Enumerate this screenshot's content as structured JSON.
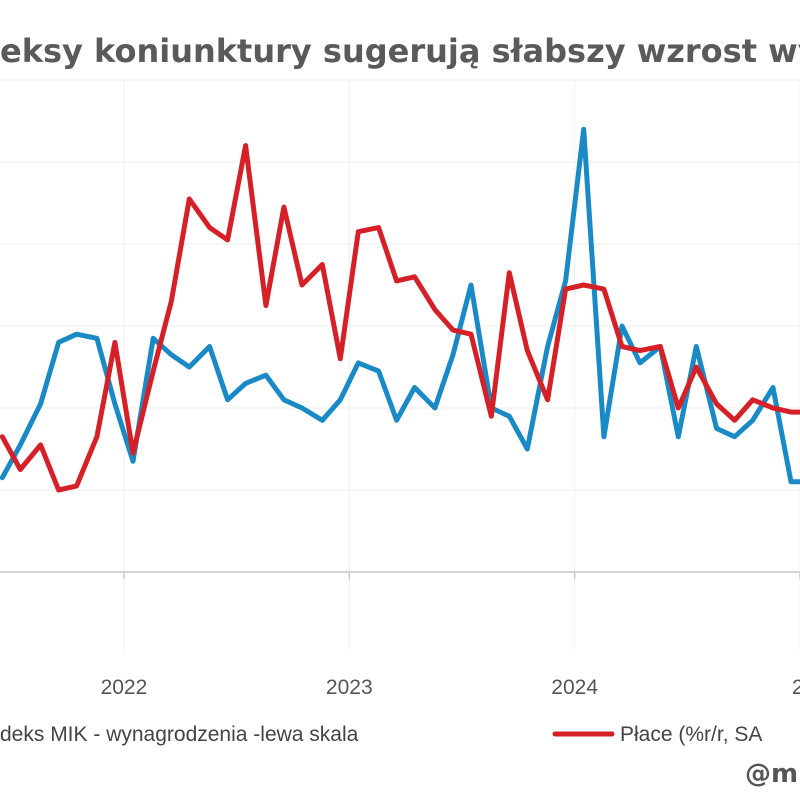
{
  "chart_data": {
    "type": "line",
    "title": "eksy koniunktury sugerują słabszy wzrost wynag",
    "x_ticks": [
      "2022",
      "2023",
      "2024",
      "2"
    ],
    "xlim": [
      2021.45,
      2025.0
    ],
    "ylim_left": [
      0,
      100
    ],
    "grid": true,
    "legend_placement": "bottom",
    "series": [
      {
        "name": "deks MIK - wynagrodzenia -lewa skala",
        "axis": "left",
        "color": "#1a8ac6",
        "x": [
          2021.46,
          2021.54,
          2021.63,
          2021.71,
          2021.79,
          2021.88,
          2021.96,
          2022.04,
          2022.13,
          2022.21,
          2022.29,
          2022.38,
          2022.46,
          2022.54,
          2022.63,
          2022.71,
          2022.79,
          2022.88,
          2022.96,
          2023.04,
          2023.13,
          2023.21,
          2023.29,
          2023.38,
          2023.46,
          2023.54,
          2023.63,
          2023.71,
          2023.79,
          2023.88,
          2023.96,
          2024.04,
          2024.13,
          2024.21,
          2024.29,
          2024.38,
          2024.46,
          2024.54,
          2024.63,
          2024.71,
          2024.79,
          2024.88,
          2024.96,
          2025.0
        ],
        "y": [
          23,
          31,
          41,
          56,
          58,
          57,
          41,
          27,
          57,
          53,
          50,
          55,
          42,
          46,
          48,
          42,
          40,
          37,
          42,
          51,
          49,
          37,
          45,
          40,
          53,
          70,
          40,
          38,
          30,
          55,
          71,
          108,
          33,
          60,
          51,
          55,
          33,
          55,
          35,
          33,
          37,
          45,
          22,
          22
        ]
      },
      {
        "name": "Płace (%r/r, SA",
        "axis": "right",
        "color": "#d62027",
        "x": [
          2021.46,
          2021.54,
          2021.63,
          2021.71,
          2021.79,
          2021.88,
          2021.96,
          2022.04,
          2022.13,
          2022.21,
          2022.29,
          2022.38,
          2022.46,
          2022.54,
          2022.63,
          2022.71,
          2022.79,
          2022.88,
          2022.96,
          2023.04,
          2023.13,
          2023.21,
          2023.29,
          2023.38,
          2023.46,
          2023.54,
          2023.63,
          2023.71,
          2023.79,
          2023.88,
          2023.96,
          2024.04,
          2024.13,
          2024.21,
          2024.29,
          2024.38,
          2024.46,
          2024.54,
          2024.63,
          2024.71,
          2024.79,
          2024.88,
          2024.96,
          2025.0
        ],
        "y": [
          33,
          25,
          31,
          20,
          21,
          33,
          56,
          29,
          49,
          66,
          91,
          84,
          81,
          104,
          65,
          89,
          70,
          75,
          52,
          83,
          84,
          71,
          72,
          64,
          59,
          58,
          38,
          73,
          54,
          42,
          69,
          70,
          69,
          55,
          54,
          55,
          40,
          50,
          41,
          37,
          42,
          40,
          39,
          39
        ]
      }
    ]
  },
  "legend": {
    "series1_label": "deks MIK - wynagrodzenia -lewa skala",
    "series2_label": "Płace (%r/r, SA"
  },
  "credit": "@m"
}
